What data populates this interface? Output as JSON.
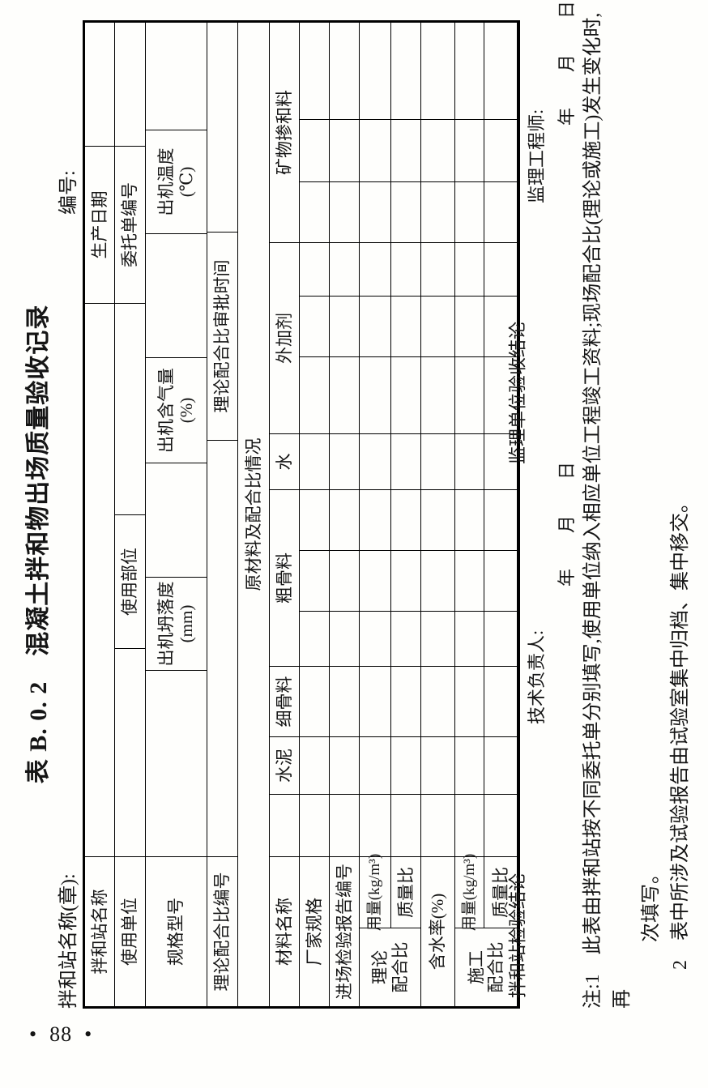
{
  "page_number": "•  88  •",
  "title": "表 B. 0. 2　混凝土拌和物出场质量验收记录",
  "station_seal_label": "拌和站名称(章):",
  "doc_number_label": "编号:",
  "table": {
    "station_name": "拌和站名称",
    "production_date": "生产日期",
    "using_unit": "使用单位",
    "using_part": "使用部位",
    "order_number": "委托单编号",
    "spec_model": "规格型号",
    "slump": "出机坍落度\n(mm)",
    "air_content": "出机含气量\n(%)",
    "temperature": "出机温度\n(℃)",
    "theory_mix_number": "理论配合比编号",
    "theory_mix_approval_time": "理论配合比审批时间",
    "materials_section": "原材料及配合比情况",
    "material_name": "材料名称",
    "materials": [
      "水泥",
      "细骨料",
      "粗骨料",
      "水",
      "外加剂",
      "矿物掺和料"
    ],
    "manufacturer_spec": "厂家规格",
    "entry_report_number": "进场检验报告编号",
    "theory_mix_group": "理论\n配合比",
    "dosage": "用量(kg/m³)",
    "mass_ratio": "质量比",
    "water_content": "含水率(%)",
    "construction_mix_group": "施工\n配合比",
    "station_conclusion": "拌和站检验结论",
    "tech_director": "技术负责人:",
    "tech_date": "年　　月　　日",
    "supervisor_conclusion": "监理单位验收结论",
    "supervisor_engineer": "监理工程师:",
    "supervisor_date": "年　　月　　日"
  },
  "notes": {
    "line1": "注:1　此表由拌和站按不同委托单分别填写,使用单位纳入相应单位工程竣工资料;现场配合比(理论或施工)发生变化时,再",
    "line2": "次填写。",
    "line3": "2　表中所涉及试验报告由试验室集中归档、集中移交。"
  }
}
